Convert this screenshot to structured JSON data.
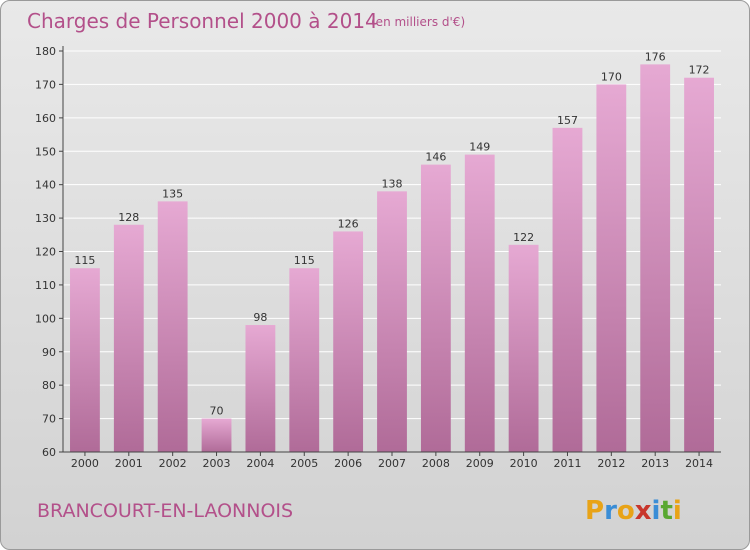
{
  "colors": {
    "bar_light": "#e6a9d3",
    "bar_dark": "#b06b98",
    "title": "#b3508a",
    "gridline": "#ffffff"
  },
  "brand": {
    "letters": [
      "P",
      "r",
      "o",
      "x",
      "i",
      "t",
      "i"
    ],
    "colors": [
      "#e8a317",
      "#3a8dd6",
      "#e8a317",
      "#c8362c",
      "#3a8dd6",
      "#5aa832",
      "#e8a317"
    ]
  },
  "chart_data": {
    "type": "bar",
    "title": "Charges de Personnel 2000 à 2014",
    "subtitle": "(en milliers d'€)",
    "location": "BRANCOURT-EN-LAONNOIS",
    "categories": [
      "2000",
      "2001",
      "2002",
      "2003",
      "2004",
      "2005",
      "2006",
      "2007",
      "2008",
      "2009",
      "2010",
      "2011",
      "2012",
      "2013",
      "2014"
    ],
    "values": [
      115,
      128,
      135,
      70,
      98,
      115,
      126,
      138,
      146,
      149,
      122,
      157,
      170,
      176,
      172
    ],
    "ylim": [
      60,
      180
    ],
    "yticks": [
      60,
      70,
      80,
      90,
      100,
      110,
      120,
      130,
      140,
      150,
      160,
      170,
      180
    ],
    "grid": true
  }
}
